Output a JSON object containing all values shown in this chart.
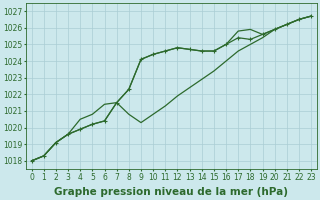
{
  "xlabel": "Graphe pression niveau de la mer (hPa)",
  "bg_color": "#cce8ec",
  "grid_color": "#aacdd4",
  "line_color": "#2d6a2d",
  "hours": [
    0,
    1,
    2,
    3,
    4,
    5,
    6,
    7,
    8,
    9,
    10,
    11,
    12,
    13,
    14,
    15,
    16,
    17,
    18,
    19,
    20,
    21,
    22,
    23
  ],
  "series1": [
    1018.0,
    1018.3,
    1019.1,
    1019.6,
    1020.5,
    1020.8,
    1021.4,
    1021.5,
    1020.8,
    1020.3,
    1020.8,
    1021.3,
    1021.9,
    1022.4,
    1022.9,
    1023.4,
    1024.0,
    1024.6,
    1025.0,
    1025.4,
    1025.9,
    1026.2,
    1026.5,
    1026.7
  ],
  "series2": [
    1018.0,
    1018.3,
    1019.1,
    1019.6,
    1019.9,
    1020.2,
    1020.4,
    1021.5,
    1022.3,
    1024.1,
    1024.4,
    1024.6,
    1024.8,
    1024.7,
    1024.6,
    1024.6,
    1025.0,
    1025.4,
    1025.3,
    1025.6,
    1025.9,
    1026.2,
    1026.5,
    1026.7
  ],
  "series3": [
    1018.0,
    1018.3,
    1019.1,
    1019.6,
    1019.9,
    1020.2,
    1020.4,
    1021.5,
    1022.3,
    1024.1,
    1024.4,
    1024.6,
    1024.8,
    1024.7,
    1024.6,
    1024.6,
    1025.0,
    1025.8,
    1025.9,
    1025.6,
    1025.9,
    1026.2,
    1026.5,
    1026.7
  ],
  "ylim_min": 1017.5,
  "ylim_max": 1027.5,
  "yticks": [
    1018,
    1019,
    1020,
    1021,
    1022,
    1023,
    1024,
    1025,
    1026,
    1027
  ],
  "markersize": 3.5,
  "linewidth": 0.9,
  "xlabel_fontsize": 7.5,
  "tick_fontsize": 5.5
}
